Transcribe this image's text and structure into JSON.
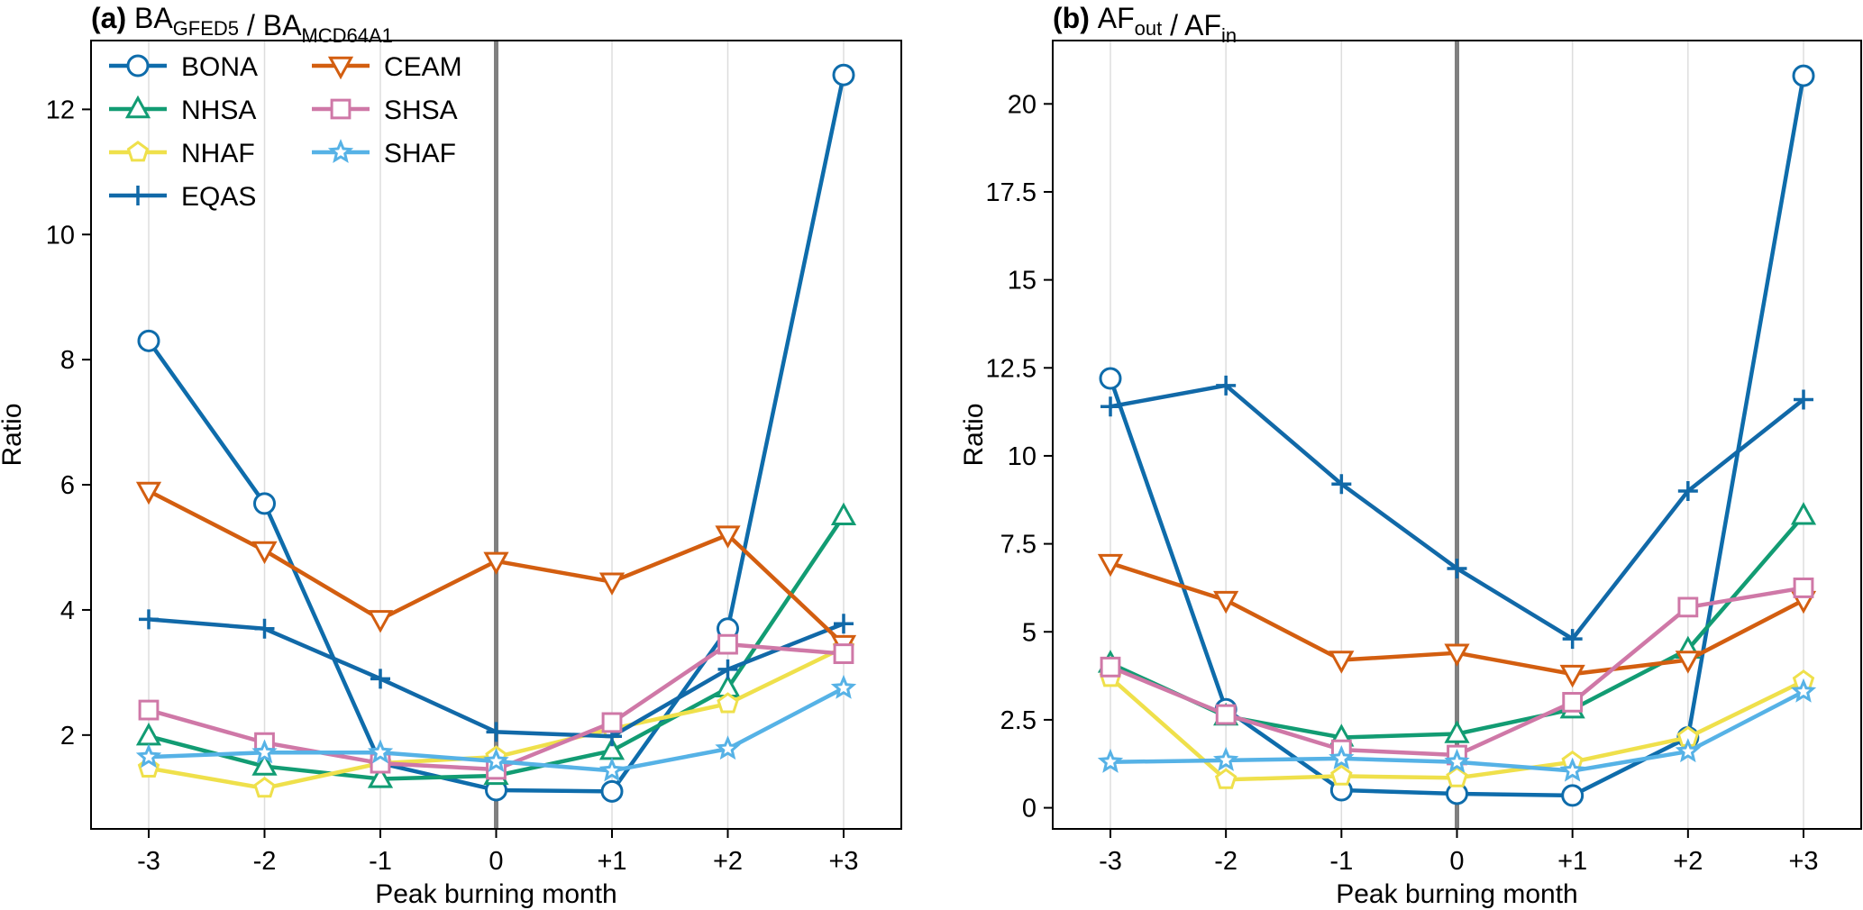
{
  "figure": {
    "x_ticks": [
      "-3",
      "-2",
      "-1",
      "0",
      "+1",
      "+2",
      "+3"
    ],
    "vline_at": "0"
  },
  "series_styles": [
    {
      "name": "BONA",
      "color": "#0E6CAB",
      "marker": "circle"
    },
    {
      "name": "NHSA",
      "color": "#129C73",
      "marker": "triangle-up"
    },
    {
      "name": "NHAF",
      "color": "#EFE04B",
      "marker": "pentagon"
    },
    {
      "name": "EQAS",
      "color": "#1169A8",
      "marker": "plus"
    },
    {
      "name": "CEAM",
      "color": "#D35E10",
      "marker": "triangle-down"
    },
    {
      "name": "SHSA",
      "color": "#CF78A7",
      "marker": "square"
    },
    {
      "name": "SHAF",
      "color": "#56B2E6",
      "marker": "star"
    }
  ],
  "chart_data": [
    {
      "type": "line",
      "panel_label": "(a)",
      "title_parts": [
        {
          "text": "BA",
          "sub": false
        },
        {
          "text": "GFED5",
          "sub": true
        },
        {
          "text": " / BA",
          "sub": false
        },
        {
          "text": "MCD64A1",
          "sub": true
        }
      ],
      "xlabel": "Peak burning month",
      "ylabel": "Ratio",
      "x": [
        "-3",
        "-2",
        "-1",
        "0",
        "+1",
        "+2",
        "+3"
      ],
      "ylim": [
        0.5,
        13.1
      ],
      "yticks": [
        2,
        4,
        6,
        8,
        10,
        12
      ],
      "ytick_labels": [
        "2",
        "4",
        "6",
        "8",
        "10",
        "12"
      ],
      "grid": "x",
      "legend": "top-left",
      "series": [
        {
          "name": "BONA",
          "values": [
            8.3,
            5.7,
            1.55,
            1.12,
            1.1,
            3.7,
            12.55
          ]
        },
        {
          "name": "NHSA",
          "values": [
            1.98,
            1.5,
            1.3,
            1.35,
            1.75,
            2.75,
            5.5
          ]
        },
        {
          "name": "NHAF",
          "values": [
            1.47,
            1.15,
            1.55,
            1.65,
            2.1,
            2.5,
            3.4
          ]
        },
        {
          "name": "EQAS",
          "values": [
            3.85,
            3.7,
            2.9,
            2.05,
            1.98,
            3.05,
            3.78
          ]
        },
        {
          "name": "CEAM",
          "values": [
            5.9,
            4.95,
            3.85,
            4.78,
            4.45,
            5.2,
            3.45
          ]
        },
        {
          "name": "SHSA",
          "values": [
            2.4,
            1.88,
            1.55,
            1.45,
            2.2,
            3.45,
            3.3
          ]
        },
        {
          "name": "SHAF",
          "values": [
            1.65,
            1.72,
            1.72,
            1.58,
            1.43,
            1.78,
            2.75
          ]
        }
      ]
    },
    {
      "type": "line",
      "panel_label": "(b)",
      "title_parts": [
        {
          "text": "AF",
          "sub": false
        },
        {
          "text": "out",
          "sub": true
        },
        {
          "text": " / AF",
          "sub": false
        },
        {
          "text": "in",
          "sub": true
        }
      ],
      "xlabel": "Peak burning month",
      "ylabel": "Ratio",
      "x": [
        "-3",
        "-2",
        "-1",
        "0",
        "+1",
        "+2",
        "+3"
      ],
      "ylim": [
        -0.6,
        21.8
      ],
      "yticks": [
        0,
        2.5,
        5,
        7.5,
        10,
        12.5,
        15,
        17.5,
        20
      ],
      "ytick_labels": [
        "0",
        "2.5",
        "5",
        "7.5",
        "10",
        "12.5",
        "15",
        "17.5",
        "20"
      ],
      "grid": "x",
      "legend": "none",
      "series": [
        {
          "name": "BONA",
          "values": [
            12.2,
            2.8,
            0.5,
            0.4,
            0.35,
            2.0,
            20.8
          ]
        },
        {
          "name": "NHSA",
          "values": [
            4.1,
            2.6,
            2.0,
            2.1,
            2.8,
            4.5,
            8.3
          ]
        },
        {
          "name": "NHAF",
          "values": [
            3.7,
            0.8,
            0.9,
            0.85,
            1.3,
            2.0,
            3.6
          ]
        },
        {
          "name": "EQAS",
          "values": [
            11.4,
            12.0,
            9.2,
            6.8,
            4.8,
            9.0,
            11.6
          ]
        },
        {
          "name": "CEAM",
          "values": [
            6.95,
            5.9,
            4.2,
            4.4,
            3.8,
            4.2,
            5.9
          ]
        },
        {
          "name": "SHSA",
          "values": [
            4.0,
            2.65,
            1.65,
            1.5,
            3.0,
            5.7,
            6.25
          ]
        },
        {
          "name": "SHAF",
          "values": [
            1.3,
            1.35,
            1.4,
            1.3,
            1.05,
            1.6,
            3.3
          ]
        }
      ]
    }
  ]
}
